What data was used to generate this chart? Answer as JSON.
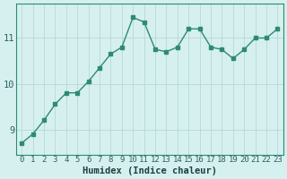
{
  "x": [
    0,
    1,
    2,
    3,
    4,
    5,
    6,
    7,
    8,
    9,
    10,
    11,
    12,
    13,
    14,
    15,
    16,
    17,
    18,
    19,
    20,
    21,
    22,
    23
  ],
  "y": [
    8.7,
    8.9,
    9.2,
    9.55,
    9.8,
    9.8,
    10.05,
    10.35,
    10.65,
    10.8,
    11.45,
    11.35,
    10.75,
    10.7,
    10.8,
    11.2,
    11.2,
    10.8,
    10.75,
    10.55,
    10.75,
    11.0,
    11.0,
    11.2
  ],
  "line_color": "#2e8b70",
  "bg_color": "#d6f0f0",
  "grid_color": "#b8d8d8",
  "xlabel": "Humidex (Indice chaleur)",
  "ylim": [
    8.45,
    11.75
  ],
  "xlim": [
    -0.5,
    23.5
  ],
  "yticks": [
    9,
    10,
    11
  ],
  "xticks": [
    0,
    1,
    2,
    3,
    4,
    5,
    6,
    7,
    8,
    9,
    10,
    11,
    12,
    13,
    14,
    15,
    16,
    17,
    18,
    19,
    20,
    21,
    22,
    23
  ],
  "xlabel_fontsize": 7.5,
  "tick_fontsize": 6.5,
  "marker": "s",
  "markersize": 2.5,
  "linewidth": 1.0
}
